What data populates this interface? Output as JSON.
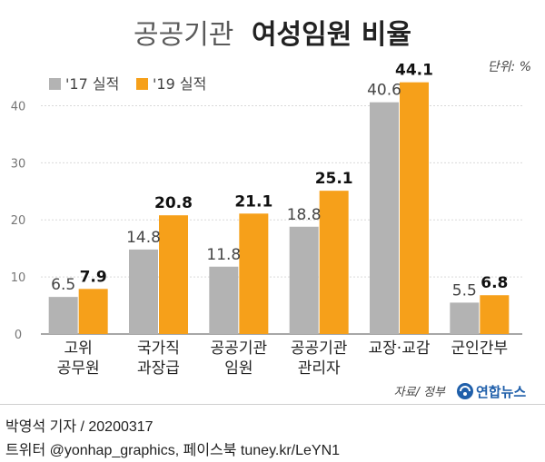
{
  "header": {
    "title_light": "공공기관",
    "title_bold": "여성임원 비율"
  },
  "unit_label": "단위: %",
  "legend": [
    {
      "label": "'17 실적",
      "color": "#b3b3b3"
    },
    {
      "label": "'19 실적",
      "color": "#f6a01a"
    }
  ],
  "source": "자료/ 정부",
  "logo": {
    "text": "연합뉴스",
    "icon": "yonhap-logo-icon"
  },
  "footer": {
    "byline": "박영석 기자 /  20200317",
    "social": "트위터 @yonhap_graphics, 페이스북 tuney.kr/LeYN1"
  },
  "chart_data": {
    "type": "bar",
    "categories": [
      [
        "고위",
        "공무원"
      ],
      [
        "국가직",
        "과장급"
      ],
      [
        "공공기관",
        "임원"
      ],
      [
        "공공기관",
        "관리자"
      ],
      [
        "교장·교감"
      ],
      [
        "군인간부"
      ]
    ],
    "series": [
      {
        "name": "'17 실적",
        "color": "#b3b3b3",
        "values": [
          6.5,
          14.8,
          11.8,
          18.8,
          40.6,
          5.5
        ]
      },
      {
        "name": "'19 실적",
        "color": "#f6a01a",
        "values": [
          7.9,
          20.8,
          21.1,
          25.1,
          44.1,
          6.8
        ]
      }
    ],
    "yticks": [
      0,
      10,
      20,
      30,
      40
    ],
    "ylim": [
      0,
      45
    ],
    "grid": true,
    "legend_position": "top-left"
  }
}
